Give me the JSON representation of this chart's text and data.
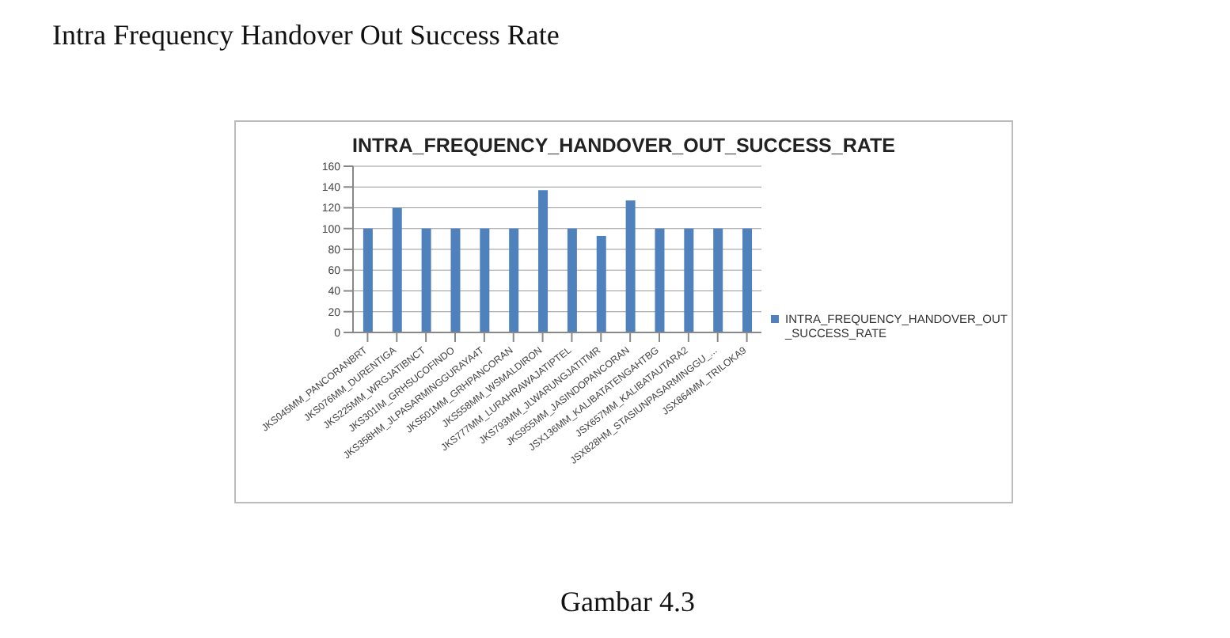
{
  "chart_data": {
    "type": "bar",
    "title": "INTRA_FREQUENCY_HANDOVER_OUT_SUCCESS_RATE",
    "annotations": [
      "Intra Frequency Handover Out Success Rate",
      "Gambar 4.3"
    ],
    "categories": [
      "JKS045MM_PANCORANBRT",
      "JKS076MM_DURENTIGA",
      "JKS225MM_WRGJATIBNCT",
      "JKS301IM_GRHSUCOFINDO",
      "JKS358HM_JLPASARMINGGURAYA4T",
      "JKS501MM_GRHPANCORAN",
      "JKS558MM_WSMALDIRON",
      "JKS777MM_LURAHRAWAJATIPTEL",
      "JKS793MM_JLWARUNGJATITMR",
      "JKS955MM_JASINDOPANCORAN",
      "JSX136MM_KALIBATATENGAHTBG",
      "JSX657MM_KALIBATAUTARA2",
      "JSX828HM_STASIUNPASARMINGGU_...",
      "JSX864MM_TRILOKA9"
    ],
    "series": [
      {
        "name": "INTRA_FREQUENCY_HANDOVER_OUT_SUCCESS_RATE",
        "color": "#4f81bd",
        "values": [
          100,
          120,
          100,
          100,
          100,
          100,
          137,
          100,
          93,
          127,
          100,
          100,
          100,
          100
        ]
      }
    ],
    "ylim": [
      0,
      160
    ],
    "yticks": [
      0,
      20,
      40,
      60,
      80,
      100,
      120,
      140,
      160
    ],
    "grid": "y",
    "legend": "right"
  }
}
